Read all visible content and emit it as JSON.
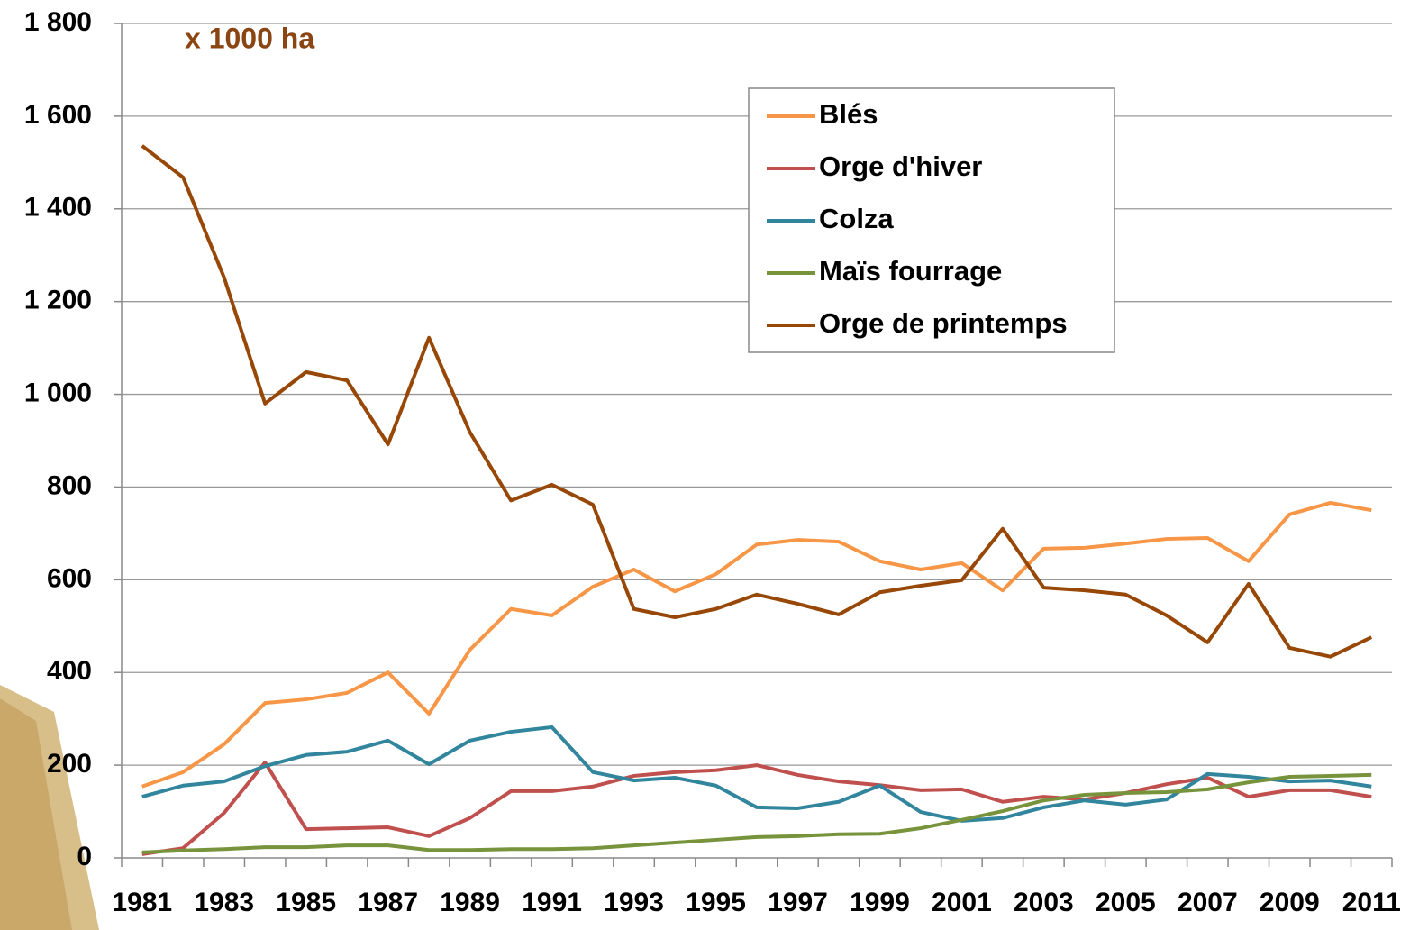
{
  "chart_data": {
    "type": "line",
    "annotation": "x 1000 ha",
    "annotation_color": "#8b4513",
    "categories": [
      "1981",
      null,
      "1983",
      null,
      "1985",
      null,
      "1987",
      null,
      "1989",
      null,
      "1991",
      null,
      "1993",
      null,
      "1995",
      null,
      "1997",
      null,
      "1999",
      null,
      "2001",
      null,
      "2003",
      null,
      "2005",
      null,
      "2007",
      null,
      "2009",
      null,
      "2011"
    ],
    "ylim": [
      0,
      1800
    ],
    "yticks": [
      0,
      200,
      400,
      600,
      800,
      {
        "value": 1000,
        "label": "1 000"
      },
      {
        "value": 1200,
        "label": "1 200"
      },
      {
        "value": 1400,
        "label": "1 400"
      },
      {
        "value": 1600,
        "label": "1 600"
      },
      {
        "value": 1800,
        "label": "1 800"
      }
    ],
    "grid": true,
    "legend": "upper-right",
    "series": [
      {
        "name": "Blés",
        "color": "#f79646",
        "values": [
          154,
          185,
          245,
          334,
          342,
          356,
          400,
          311,
          449,
          537,
          523,
          585,
          622,
          575,
          612,
          676,
          686,
          682,
          640,
          622,
          636,
          577,
          667,
          669,
          678,
          688,
          690,
          640,
          741,
          766,
          750
        ]
      },
      {
        "name": "Orge d'hiver",
        "color": "#c0504d",
        "values": [
          8,
          21,
          97,
          206,
          62,
          64,
          66,
          47,
          86,
          144,
          144,
          154,
          177,
          185,
          189,
          200,
          179,
          165,
          157,
          146,
          148,
          121,
          132,
          126,
          140,
          159,
          173,
          132,
          146,
          146,
          132
        ]
      },
      {
        "name": "Colza",
        "color": "#31859c",
        "values": [
          132,
          156,
          165,
          198,
          222,
          229,
          253,
          202,
          253,
          272,
          282,
          185,
          167,
          173,
          156,
          109,
          107,
          121,
          156,
          99,
          80,
          86,
          109,
          124,
          115,
          126,
          181,
          175,
          165,
          167,
          154
        ]
      },
      {
        "name": "Maïs fourrage",
        "color": "#77933c",
        "values": [
          12,
          16,
          19,
          23,
          23,
          27,
          27,
          17,
          17,
          19,
          19,
          21,
          27,
          33,
          39,
          45,
          47,
          51,
          52,
          64,
          82,
          101,
          124,
          136,
          140,
          142,
          148,
          163,
          175,
          177,
          179
        ]
      },
      {
        "name": "Orge de printemps",
        "color": "#974706",
        "values": [
          1536,
          1468,
          1252,
          980,
          1048,
          1030,
          892,
          1122,
          918,
          771,
          805,
          762,
          537,
          519,
          537,
          568,
          548,
          525,
          573,
          587,
          599,
          710,
          583,
          577,
          568,
          523,
          465,
          591,
          453,
          434,
          476
        ]
      }
    ]
  }
}
